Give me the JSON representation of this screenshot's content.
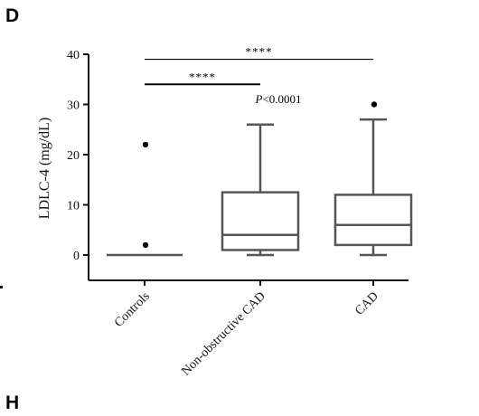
{
  "panel_letters": [
    "D",
    "H"
  ],
  "chart_data": {
    "type": "box",
    "ylabel": "LDLC-4 (mg/dL)",
    "ylim": [
      -5,
      40
    ],
    "yticks": [
      0,
      10,
      20,
      30,
      40
    ],
    "categories": [
      "Controls",
      "Non-obstructive CAD",
      "CAD"
    ],
    "boxes": [
      {
        "name": "Controls",
        "min": 0,
        "q1": 0,
        "median": 0,
        "q3": 0,
        "max": 0,
        "outliers": [
          22,
          2
        ]
      },
      {
        "name": "Non-obstructive CAD",
        "min": 0,
        "q1": 1,
        "median": 4,
        "q3": 12.5,
        "max": 26,
        "outliers": []
      },
      {
        "name": "CAD",
        "min": 0,
        "q1": 2,
        "median": 6,
        "q3": 12,
        "max": 27,
        "outliers": [
          30
        ]
      }
    ],
    "significance": [
      {
        "from": 0,
        "to": 2,
        "y": 39,
        "label": "****"
      },
      {
        "from": 0,
        "to": 1,
        "y": 34,
        "label": "****"
      }
    ],
    "annotations": [
      {
        "text": "P<0.0001",
        "x_category": 1,
        "y": 31
      }
    ],
    "colors": {
      "box": "#555555",
      "axis": "#111111",
      "point": "#000000"
    }
  }
}
